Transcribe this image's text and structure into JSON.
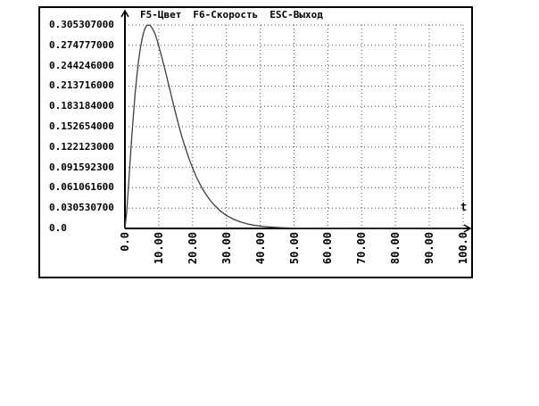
{
  "window": {
    "bg_color": "#ffffff",
    "border_color": "#000000",
    "text_color": "#000000"
  },
  "menu": {
    "items": [
      {
        "label": "F5-Цвет"
      },
      {
        "label": "F6-Скорость"
      },
      {
        "label": "ESC-Выход"
      }
    ]
  },
  "chart_data": {
    "type": "line",
    "title": "",
    "xlabel": "t",
    "ylabel": "",
    "xlim": [
      0,
      100
    ],
    "ylim": [
      0,
      0.305307
    ],
    "grid": "dotted",
    "legend": "none",
    "grid_color": "#4d4d4d",
    "curve_color": "#3d3d3d",
    "axis_color": "#000000",
    "x_ticks": [
      "0.0",
      "10.00",
      "20.00",
      "30.00",
      "40.00",
      "50.00",
      "60.00",
      "70.00",
      "80.00",
      "90.00",
      "100.0"
    ],
    "y_ticks": [
      "0.305307000",
      "0.274777000",
      "0.244246000",
      "0.213716000",
      "0.183184000",
      "0.152654000",
      "0.122123000",
      "0.091592300",
      "0.061061600",
      "0.030530700",
      "0.0"
    ],
    "points": [
      [
        0,
        0
      ],
      [
        0.5,
        0.0235
      ],
      [
        1,
        0.0596
      ],
      [
        1.5,
        0.099
      ],
      [
        2,
        0.136
      ],
      [
        2.5,
        0.17
      ],
      [
        3,
        0.202
      ],
      [
        3.5,
        0.228
      ],
      [
        4,
        0.251
      ],
      [
        4.5,
        0.269
      ],
      [
        5,
        0.283
      ],
      [
        5.5,
        0.293
      ],
      [
        6,
        0.301
      ],
      [
        6.5,
        0.3045
      ],
      [
        7,
        0.3053
      ],
      [
        7.5,
        0.3045
      ],
      [
        8,
        0.301
      ],
      [
        8.5,
        0.2965
      ],
      [
        9,
        0.291
      ],
      [
        9.5,
        0.283
      ],
      [
        10,
        0.274
      ],
      [
        11,
        0.255
      ],
      [
        12,
        0.235
      ],
      [
        13,
        0.214
      ],
      [
        14,
        0.193
      ],
      [
        15,
        0.173
      ],
      [
        16,
        0.153
      ],
      [
        17,
        0.135
      ],
      [
        18,
        0.119
      ],
      [
        19,
        0.104
      ],
      [
        20,
        0.0906
      ],
      [
        21,
        0.0785
      ],
      [
        22,
        0.068
      ],
      [
        23,
        0.0589
      ],
      [
        24,
        0.0506
      ],
      [
        25,
        0.0435
      ],
      [
        26,
        0.0373
      ],
      [
        28,
        0.0272
      ],
      [
        30,
        0.0196
      ],
      [
        32,
        0.014
      ],
      [
        34,
        0.01
      ],
      [
        36,
        0.0071
      ],
      [
        38,
        0.005
      ],
      [
        40,
        0.0035
      ],
      [
        42,
        0.0025
      ],
      [
        44,
        0.0017
      ],
      [
        46,
        0.0012
      ],
      [
        48,
        0.0008
      ],
      [
        50,
        0.0006
      ],
      [
        55,
        0.0002
      ],
      [
        60,
        0.0001
      ],
      [
        70,
        0
      ],
      [
        80,
        0
      ],
      [
        90,
        0
      ],
      [
        100,
        0
      ]
    ]
  }
}
